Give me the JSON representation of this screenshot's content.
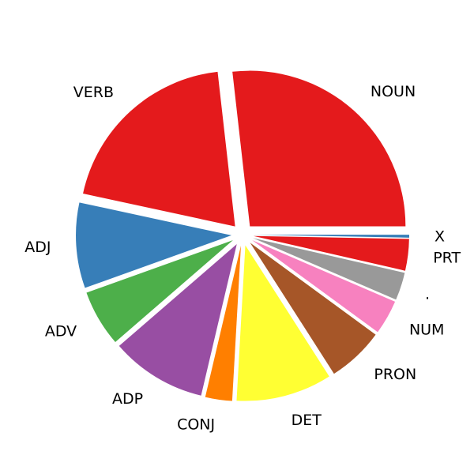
{
  "chart_data": {
    "type": "pie",
    "start_angle_deg": 0,
    "direction": "counterclockwise",
    "categories": [
      "NOUN",
      "VERB",
      "ADJ",
      "ADV",
      "ADP",
      "CONJ",
      "DET",
      "PRON",
      "NUM",
      ".",
      "PRT",
      "X"
    ],
    "values": [
      26.9,
      19.9,
      8.9,
      5.9,
      10.0,
      2.8,
      10.0,
      5.9,
      3.6,
      2.9,
      3.3,
      0.3
    ],
    "colors": [
      "#e41a1c",
      "#e41a1c",
      "#377eb8",
      "#4daf4a",
      "#984ea3",
      "#ff7f00",
      "#ffff33",
      "#a65628",
      "#f781bf",
      "#999999",
      "#e41a1c",
      "#377eb8"
    ],
    "explode": true
  }
}
